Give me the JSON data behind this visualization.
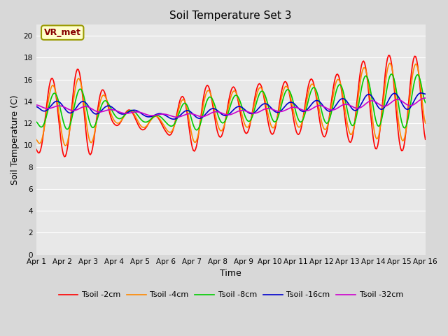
{
  "title": "Soil Temperature Set 3",
  "xlabel": "Time",
  "ylabel": "Soil Temperature (C)",
  "ylim": [
    0,
    21
  ],
  "yticks": [
    0,
    2,
    4,
    6,
    8,
    10,
    12,
    14,
    16,
    18,
    20
  ],
  "xtick_labels": [
    "Apr 1",
    "Apr 2",
    "Apr 3",
    "Apr 4",
    "Apr 5",
    "Apr 6",
    "Apr 7",
    "Apr 8",
    "Apr 9",
    "Apr 10",
    "Apr 11",
    "Apr 12",
    "Apr 13",
    "Apr 14",
    "Apr 15",
    "Apr 16"
  ],
  "series_colors": [
    "#ff0000",
    "#ff8800",
    "#00cc00",
    "#0000cc",
    "#cc00cc"
  ],
  "series_labels": [
    "Tsoil -2cm",
    "Tsoil -4cm",
    "Tsoil -8cm",
    "Tsoil -16cm",
    "Tsoil -32cm"
  ],
  "annotation_text": "VR_met",
  "bg_color": "#d8d8d8",
  "plot_bg_color": "#e8e8e8",
  "n_points": 360,
  "days": 15,
  "amp_2cm": [
    3.1,
    4.0,
    4.3,
    0.9,
    0.8,
    0.7,
    3.3,
    2.4,
    2.2,
    2.5,
    2.5,
    2.8,
    3.3,
    4.5,
    4.5
  ],
  "amp_4cm": [
    2.5,
    3.2,
    3.4,
    0.8,
    0.7,
    0.6,
    2.7,
    2.0,
    1.8,
    2.1,
    2.0,
    2.3,
    2.8,
    3.8,
    3.8
  ],
  "amp_8cm": [
    1.5,
    2.0,
    2.2,
    0.6,
    0.5,
    0.4,
    1.8,
    1.4,
    1.4,
    1.7,
    1.7,
    1.9,
    2.2,
    2.8,
    2.8
  ],
  "amp_16cm": [
    0.6,
    0.7,
    0.8,
    0.4,
    0.3,
    0.3,
    0.6,
    0.5,
    0.5,
    0.6,
    0.6,
    0.7,
    0.8,
    1.0,
    1.0
  ],
  "amp_32cm": [
    0.3,
    0.3,
    0.4,
    0.2,
    0.2,
    0.2,
    0.3,
    0.3,
    0.3,
    0.3,
    0.3,
    0.4,
    0.4,
    0.5,
    0.5
  ],
  "base_2cm": [
    12.3,
    12.8,
    13.0,
    12.7,
    12.2,
    11.8,
    12.5,
    13.0,
    13.2,
    13.4,
    13.4,
    13.5,
    13.5,
    14.0,
    13.8
  ],
  "base_4cm": [
    12.5,
    12.9,
    13.1,
    12.8,
    12.3,
    11.9,
    12.6,
    13.1,
    13.3,
    13.5,
    13.5,
    13.6,
    13.6,
    14.1,
    13.9
  ],
  "base_8cm": [
    13.0,
    13.2,
    13.3,
    13.0,
    12.6,
    12.2,
    12.8,
    13.2,
    13.4,
    13.6,
    13.6,
    13.7,
    13.7,
    14.2,
    14.0
  ],
  "base_16cm": [
    13.6,
    13.5,
    13.4,
    13.2,
    12.9,
    12.6,
    12.8,
    13.0,
    13.2,
    13.4,
    13.5,
    13.6,
    13.7,
    14.0,
    14.0
  ],
  "base_32cm": [
    13.6,
    13.4,
    13.3,
    13.1,
    12.9,
    12.7,
    12.7,
    12.9,
    13.0,
    13.2,
    13.3,
    13.4,
    13.5,
    13.8,
    13.9
  ]
}
